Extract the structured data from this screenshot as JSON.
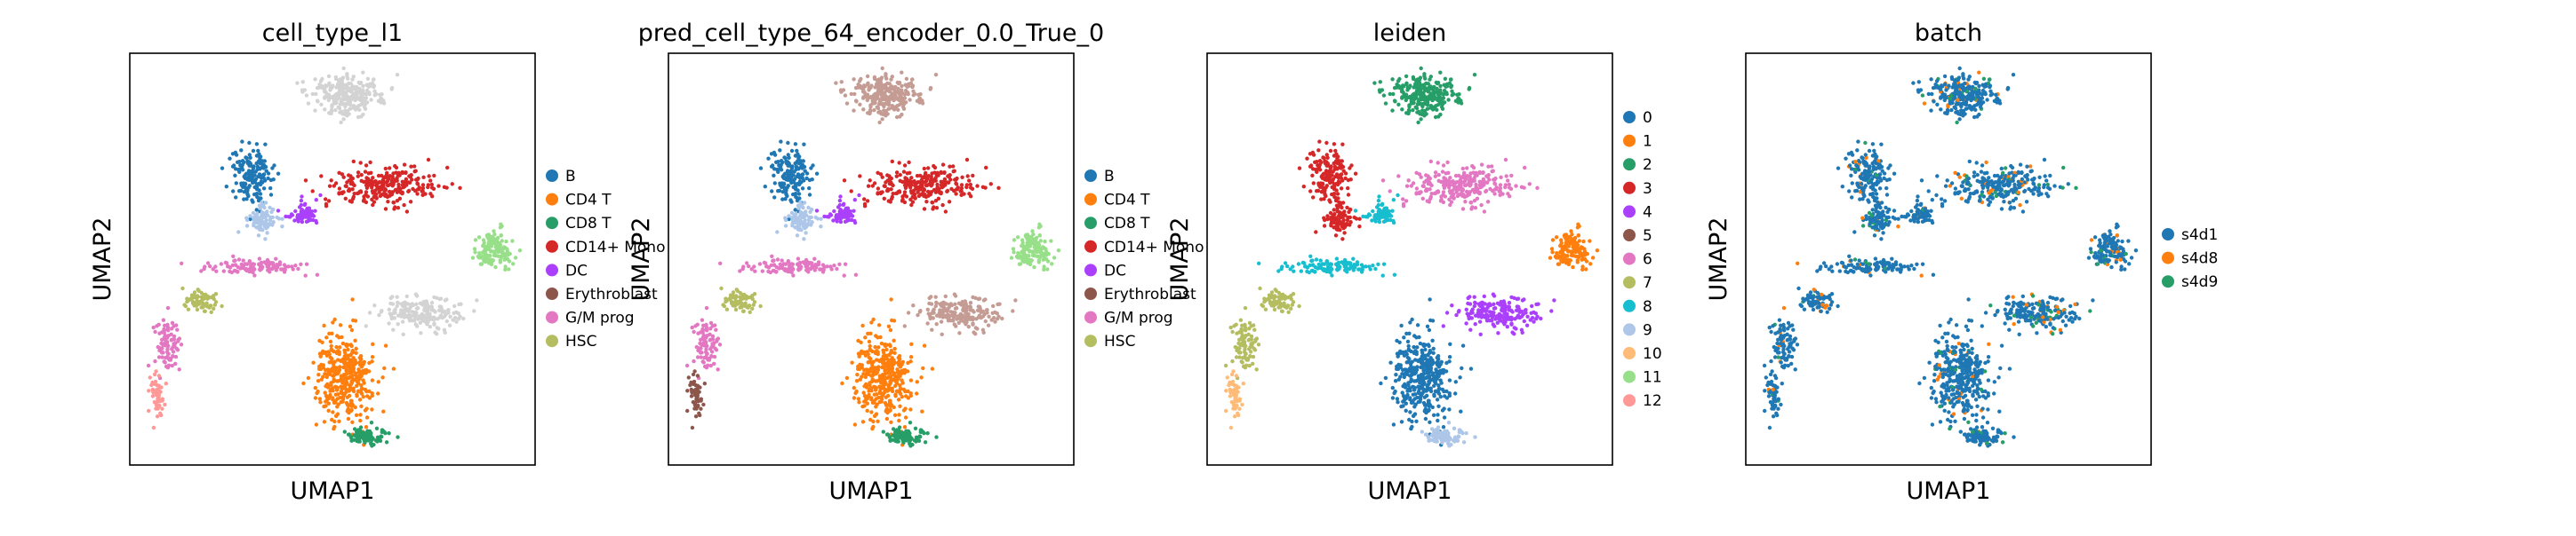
{
  "chart_data": [
    {
      "type": "scatter",
      "title": "cell_type_l1",
      "xlabel": "UMAP1",
      "ylabel": "UMAP2",
      "grid": false,
      "legend_position": "right",
      "legend": [
        {
          "label": "B",
          "color": "#1f77b4"
        },
        {
          "label": "CD4 T",
          "color": "#ff7f0e"
        },
        {
          "label": "CD8 T",
          "color": "#279e68"
        },
        {
          "label": "CD14+ Mono",
          "color": "#d62728"
        },
        {
          "label": "DC",
          "color": "#aa40fc"
        },
        {
          "label": "Erythroblast",
          "color": "#8c564b"
        },
        {
          "label": "G/M prog",
          "color": "#e377c2"
        },
        {
          "label": "HSC",
          "color": "#b5bd61"
        }
      ],
      "other_color": "#d3d3d3",
      "regions": [
        "#d3d3d3",
        "#1f77b4",
        "#aec7e8",
        "#d62728",
        "#aa40fc",
        "#e377c2",
        "#b5bd61",
        "#e377c2",
        "#ff9896",
        "#98df8a",
        "#ff7f0e",
        "#d3d3d3",
        "#279e68"
      ]
    },
    {
      "type": "scatter",
      "title": "pred_cell_type_64_encoder_0.0_True_0",
      "xlabel": "UMAP1",
      "ylabel": "UMAP2",
      "grid": false,
      "legend_position": "right",
      "legend": [
        {
          "label": "B",
          "color": "#1f77b4"
        },
        {
          "label": "CD4 T",
          "color": "#ff7f0e"
        },
        {
          "label": "CD8 T",
          "color": "#279e68"
        },
        {
          "label": "CD14+ Mono",
          "color": "#d62728"
        },
        {
          "label": "DC",
          "color": "#aa40fc"
        },
        {
          "label": "Erythroblast",
          "color": "#8c564b"
        },
        {
          "label": "G/M prog",
          "color": "#e377c2"
        },
        {
          "label": "HSC",
          "color": "#b5bd61"
        }
      ],
      "other_color": "#c49c94",
      "regions": [
        "#c49c94",
        "#1f77b4",
        "#aec7e8",
        "#d62728",
        "#aa40fc",
        "#e377c2",
        "#b5bd61",
        "#e377c2",
        "#8c564b",
        "#98df8a",
        "#ff7f0e",
        "#c49c94",
        "#279e68"
      ]
    },
    {
      "type": "scatter",
      "title": "leiden",
      "xlabel": "UMAP1",
      "ylabel": "UMAP2",
      "grid": false,
      "legend_position": "right",
      "legend": [
        {
          "label": "0",
          "color": "#1f77b4"
        },
        {
          "label": "1",
          "color": "#ff7f0e"
        },
        {
          "label": "2",
          "color": "#279e68"
        },
        {
          "label": "3",
          "color": "#d62728"
        },
        {
          "label": "4",
          "color": "#aa40fc"
        },
        {
          "label": "5",
          "color": "#8c564b"
        },
        {
          "label": "6",
          "color": "#e377c2"
        },
        {
          "label": "7",
          "color": "#b5bd61"
        },
        {
          "label": "8",
          "color": "#17becf"
        },
        {
          "label": "9",
          "color": "#aec7e8"
        },
        {
          "label": "10",
          "color": "#ffbb78"
        },
        {
          "label": "11",
          "color": "#98df8a"
        },
        {
          "label": "12",
          "color": "#ff9896"
        }
      ],
      "regions": [
        "#279e68",
        "#d62728",
        "#d62728",
        "#e377c2",
        "#17becf",
        "#17becf",
        "#b5bd61",
        "#b5bd61",
        "#ffbb78",
        "#ff7f0e",
        "#1f77b4",
        "#aa40fc",
        "#aec7e8"
      ]
    },
    {
      "type": "scatter",
      "title": "batch",
      "xlabel": "UMAP1",
      "ylabel": "UMAP2",
      "grid": false,
      "legend_position": "right",
      "legend": [
        {
          "label": "s4d1",
          "color": "#1f77b4"
        },
        {
          "label": "s4d8",
          "color": "#ff7f0e"
        },
        {
          "label": "s4d9",
          "color": "#279e68"
        }
      ],
      "regions": [
        "#1f77b4",
        "#1f77b4",
        "#1f77b4",
        "#1f77b4",
        "#1f77b4",
        "#1f77b4",
        "#1f77b4",
        "#1f77b4",
        "#1f77b4",
        "#1f77b4",
        "#1f77b4",
        "#1f77b4",
        "#1f77b4"
      ],
      "speckle": [
        "#279e68",
        "#ff7f0e"
      ]
    }
  ]
}
